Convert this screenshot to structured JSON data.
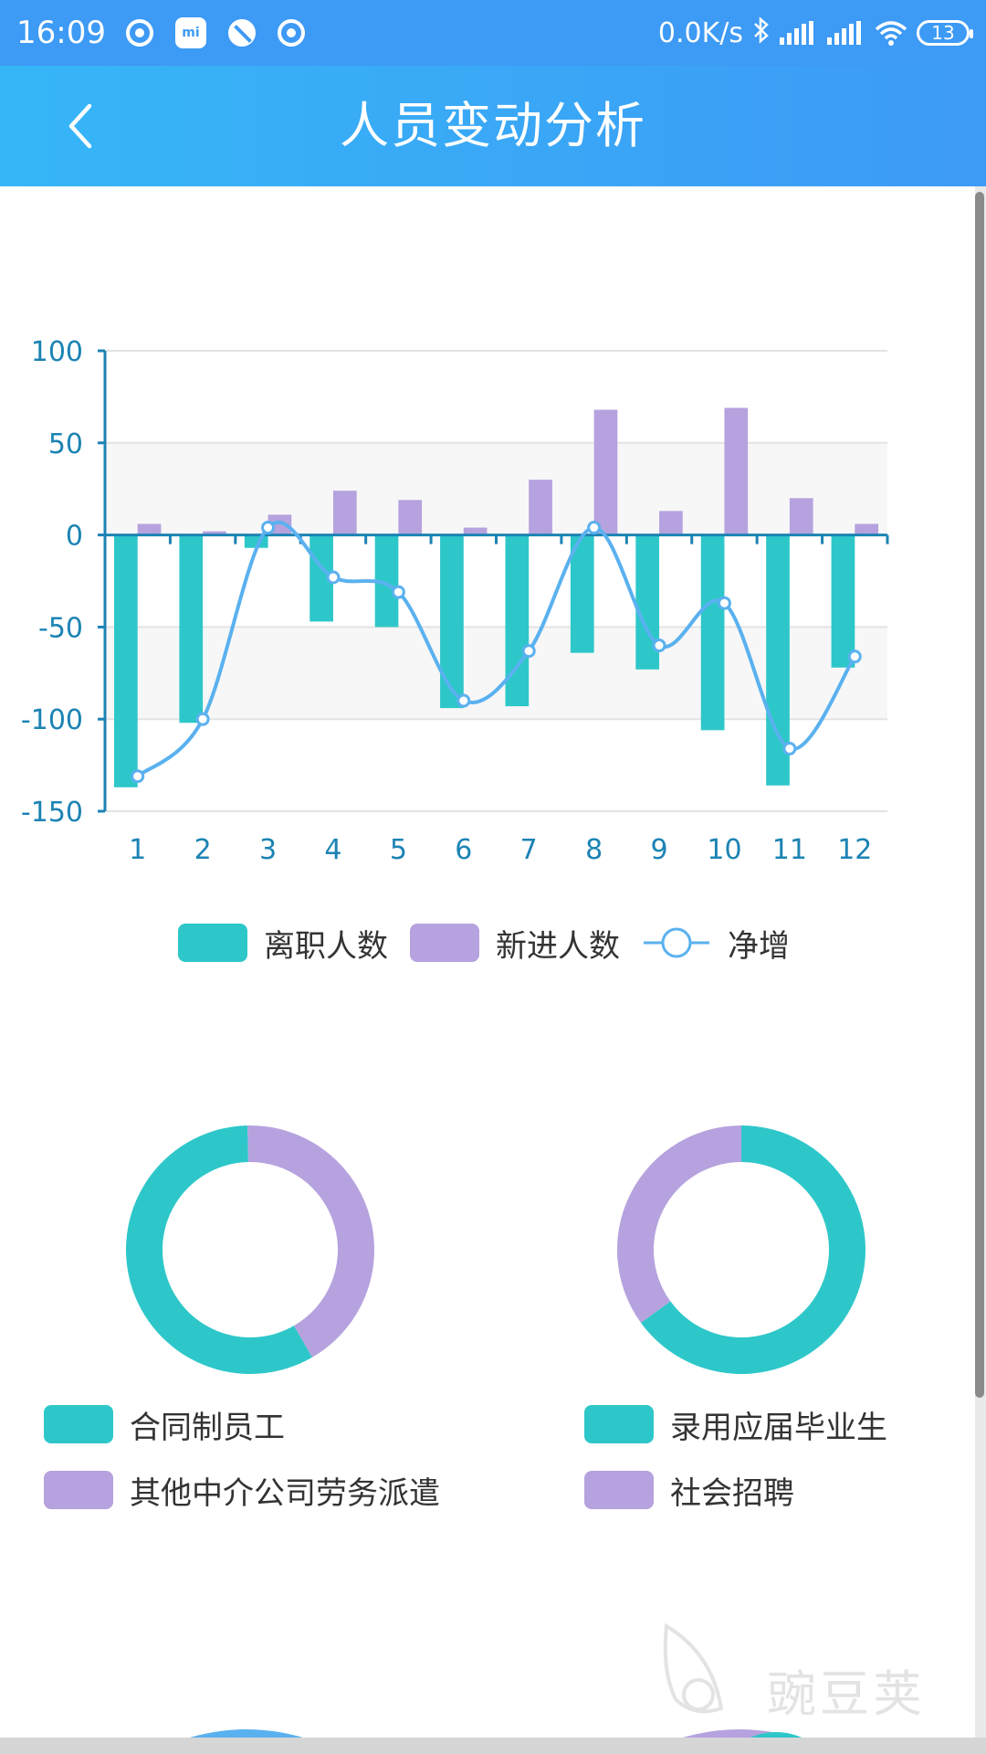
{
  "status_bar": {
    "time": "16:09",
    "mi_label": "mi",
    "net_speed": "0.0K/s",
    "battery": "13",
    "icons": [
      "notification-dot-icon",
      "mi-icon",
      "no-disturb-icon",
      "notification-dot-icon",
      "bluetooth-icon",
      "signal-icon",
      "signal-icon",
      "wifi-icon",
      "battery-icon"
    ]
  },
  "header": {
    "title": "人员变动分析",
    "back_icon": "chevron-left-icon"
  },
  "colors": {
    "header_blue": "#3d9af5",
    "teal": "#2ec7c9",
    "purple": "#b6a2de",
    "line_blue": "#5ab1ef",
    "axis_blue": "#1c83b4"
  },
  "chart_data": [
    {
      "type": "bar",
      "categories": [
        "1",
        "2",
        "3",
        "4",
        "5",
        "6",
        "7",
        "8",
        "9",
        "10",
        "11",
        "12"
      ],
      "series": [
        {
          "name": "离职人数",
          "type": "bar",
          "values": [
            -137,
            -102,
            -7,
            -47,
            -50,
            -94,
            -93,
            -64,
            -73,
            -106,
            -136,
            -72
          ]
        },
        {
          "name": "新进人数",
          "type": "bar",
          "values": [
            6,
            2,
            11,
            24,
            19,
            4,
            30,
            68,
            13,
            69,
            20,
            6
          ]
        },
        {
          "name": "净增",
          "type": "line",
          "smooth": true,
          "values": [
            -131,
            -100,
            4,
            -23,
            -31,
            -90,
            -63,
            4,
            -60,
            -37,
            -116,
            -66
          ]
        }
      ],
      "yticks": [
        "100",
        "50",
        "0",
        "-50",
        "-100",
        "-150"
      ],
      "ylim": [
        -150,
        100
      ],
      "grid": true,
      "legend": "bottom-center"
    },
    {
      "type": "pie",
      "donut": true,
      "labels": [
        "合同制员工",
        "其他中介公司劳务派遣"
      ],
      "values": [
        58,
        42
      ],
      "colors": [
        "#2ec7c9",
        "#b6a2de"
      ]
    },
    {
      "type": "pie",
      "donut": true,
      "labels": [
        "录用应届毕业生",
        "社会招聘"
      ],
      "values": [
        65,
        35
      ],
      "colors": [
        "#2ec7c9",
        "#b6a2de"
      ]
    }
  ],
  "watermark": {
    "text": "豌豆荚"
  }
}
